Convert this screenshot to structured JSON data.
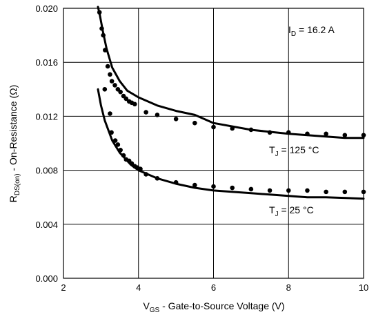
{
  "chart_data": {
    "type": "line",
    "title": "",
    "xlabel": {
      "main": "V",
      "sub": "GS",
      "rest": " - Gate-to-Source Voltage (V)"
    },
    "ylabel": {
      "main": "R",
      "sub": "DS(on)",
      "rest": " - On-Resistance (Ω)"
    },
    "xlim": [
      2,
      10
    ],
    "ylim": [
      0,
      0.02
    ],
    "x_ticks": [
      "2",
      "4",
      "6",
      "8",
      "10"
    ],
    "y_ticks": [
      "0.000",
      "0.004",
      "0.008",
      "0.012",
      "0.016",
      "0.020"
    ],
    "grid": true,
    "legend": "none",
    "annotation": {
      "main": "I",
      "sub": "D",
      "rest": " = 16.2 A"
    },
    "series": [
      {
        "name": "T_J = 125 °C",
        "label": {
          "main": "T",
          "sub": "J",
          "rest": " = 125 °C"
        },
        "line": [
          [
            2.92,
            0.0201
          ],
          [
            2.97,
            0.0195
          ],
          [
            3.05,
            0.0183
          ],
          [
            3.15,
            0.017
          ],
          [
            3.3,
            0.0156
          ],
          [
            3.5,
            0.0146
          ],
          [
            3.7,
            0.0139
          ],
          [
            4.0,
            0.0134
          ],
          [
            4.5,
            0.0128
          ],
          [
            5.0,
            0.0124
          ],
          [
            5.5,
            0.0121
          ],
          [
            6.0,
            0.0115
          ],
          [
            7.0,
            0.011
          ],
          [
            8.0,
            0.0107
          ],
          [
            9.0,
            0.0105
          ],
          [
            9.5,
            0.0104
          ],
          [
            10.0,
            0.0104
          ]
        ],
        "points": [
          [
            2.96,
            0.0197
          ],
          [
            3.02,
            0.0185
          ],
          [
            3.06,
            0.018
          ],
          [
            3.11,
            0.0169
          ],
          [
            3.18,
            0.0157
          ],
          [
            3.24,
            0.0151
          ],
          [
            3.29,
            0.0146
          ],
          [
            3.37,
            0.0143
          ],
          [
            3.45,
            0.014
          ],
          [
            3.52,
            0.0138
          ],
          [
            3.6,
            0.0135
          ],
          [
            3.67,
            0.0133
          ],
          [
            3.75,
            0.0131
          ],
          [
            3.82,
            0.013
          ],
          [
            3.9,
            0.0129
          ],
          [
            4.2,
            0.0123
          ],
          [
            4.5,
            0.0121
          ],
          [
            5.0,
            0.0118
          ],
          [
            5.5,
            0.0115
          ],
          [
            6.0,
            0.0112
          ],
          [
            6.5,
            0.0111
          ],
          [
            7.0,
            0.011
          ],
          [
            7.5,
            0.0108
          ],
          [
            8.0,
            0.0108
          ],
          [
            8.5,
            0.0107
          ],
          [
            9.0,
            0.0107
          ],
          [
            9.5,
            0.0106
          ],
          [
            10.0,
            0.0106
          ]
        ]
      },
      {
        "name": "T_J = 25 °C",
        "label": {
          "main": "T",
          "sub": "J",
          "rest": " = 25 °C"
        },
        "line": [
          [
            2.92,
            0.014
          ],
          [
            3.0,
            0.0128
          ],
          [
            3.1,
            0.0117
          ],
          [
            3.3,
            0.0102
          ],
          [
            3.5,
            0.0093
          ],
          [
            3.8,
            0.0084
          ],
          [
            4.0,
            0.008
          ],
          [
            4.5,
            0.0074
          ],
          [
            5.0,
            0.007
          ],
          [
            5.5,
            0.0067
          ],
          [
            6.0,
            0.0065
          ],
          [
            7.0,
            0.0063
          ],
          [
            8.0,
            0.0061
          ],
          [
            8.5,
            0.006
          ],
          [
            9.0,
            0.006
          ],
          [
            10.0,
            0.0059
          ]
        ],
        "points": [
          [
            3.1,
            0.014
          ],
          [
            3.24,
            0.0122
          ],
          [
            3.28,
            0.0108
          ],
          [
            3.38,
            0.0102
          ],
          [
            3.45,
            0.0099
          ],
          [
            3.52,
            0.0095
          ],
          [
            3.6,
            0.0091
          ],
          [
            3.67,
            0.0088
          ],
          [
            3.75,
            0.0087
          ],
          [
            3.82,
            0.0085
          ],
          [
            3.9,
            0.0083
          ],
          [
            3.97,
            0.0082
          ],
          [
            4.05,
            0.0081
          ],
          [
            4.2,
            0.0077
          ],
          [
            4.5,
            0.0074
          ],
          [
            5.0,
            0.0071
          ],
          [
            5.5,
            0.0069
          ],
          [
            6.0,
            0.0068
          ],
          [
            6.5,
            0.0067
          ],
          [
            7.0,
            0.0066
          ],
          [
            7.5,
            0.0065
          ],
          [
            8.0,
            0.0065
          ],
          [
            8.5,
            0.0065
          ],
          [
            9.0,
            0.0064
          ],
          [
            9.5,
            0.0064
          ],
          [
            10.0,
            0.0064
          ]
        ]
      }
    ]
  }
}
